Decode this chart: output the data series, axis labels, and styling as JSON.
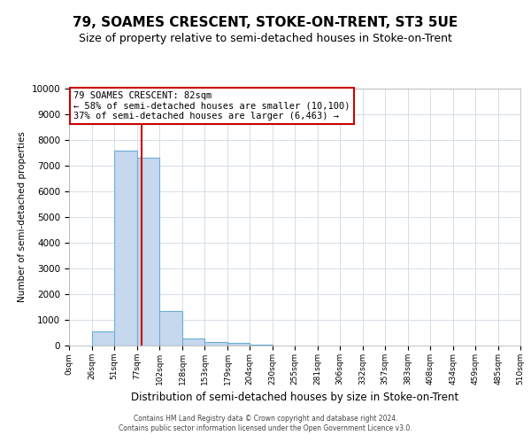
{
  "title": "79, SOAMES CRESCENT, STOKE-ON-TRENT, ST3 5UE",
  "subtitle": "Size of property relative to semi-detached houses in Stoke-on-Trent",
  "xlabel": "Distribution of semi-detached houses by size in Stoke-on-Trent",
  "ylabel": "Number of semi-detached properties",
  "bin_edges": [
    0,
    26,
    51,
    77,
    102,
    128,
    153,
    179,
    204,
    230,
    255,
    281,
    306,
    332,
    357,
    383,
    408,
    434,
    459,
    485,
    510
  ],
  "bar_heights": [
    0,
    560,
    7600,
    7300,
    1350,
    290,
    140,
    100,
    50,
    0,
    0,
    0,
    0,
    0,
    0,
    0,
    0,
    0,
    0,
    0
  ],
  "bar_color": "#c5d8ed",
  "bar_edge_color": "#6aaed6",
  "property_size": 82,
  "vline_color": "#cc0000",
  "ylim": [
    0,
    10000
  ],
  "yticks": [
    0,
    1000,
    2000,
    3000,
    4000,
    5000,
    6000,
    7000,
    8000,
    9000,
    10000
  ],
  "xtick_labels": [
    "0sqm",
    "26sqm",
    "51sqm",
    "77sqm",
    "102sqm",
    "128sqm",
    "153sqm",
    "179sqm",
    "204sqm",
    "230sqm",
    "255sqm",
    "281sqm",
    "306sqm",
    "332sqm",
    "357sqm",
    "383sqm",
    "408sqm",
    "434sqm",
    "459sqm",
    "485sqm",
    "510sqm"
  ],
  "annotation_title": "79 SOAMES CRESCENT: 82sqm",
  "annotation_line1": "← 58% of semi-detached houses are smaller (10,100)",
  "annotation_line2": "37% of semi-detached houses are larger (6,463) →",
  "annotation_box_color": "#ffffff",
  "annotation_box_edge": "#cc0000",
  "footer_line1": "Contains HM Land Registry data © Crown copyright and database right 2024.",
  "footer_line2": "Contains public sector information licensed under the Open Government Licence v3.0.",
  "background_color": "#ffffff",
  "grid_color": "#d0d8e4",
  "title_fontsize": 11,
  "subtitle_fontsize": 9
}
